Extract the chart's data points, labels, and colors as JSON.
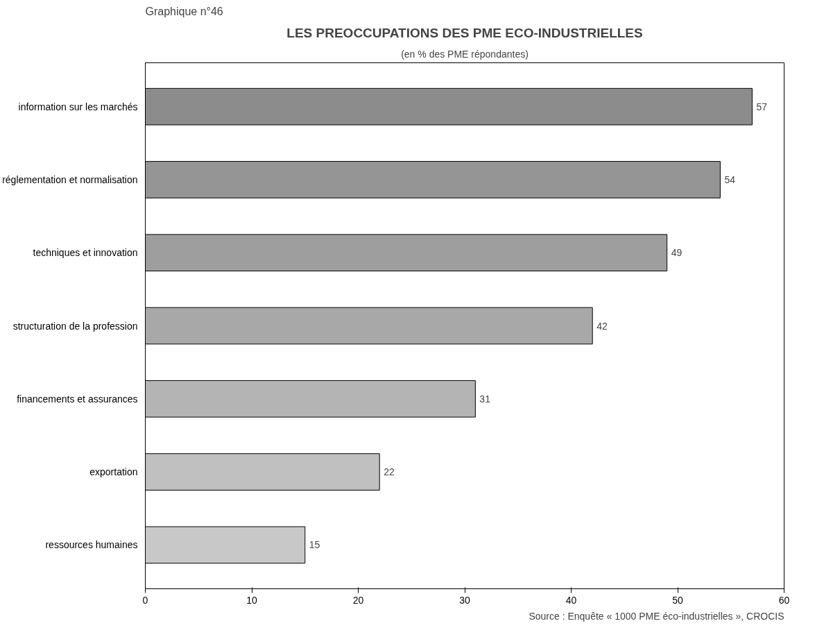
{
  "chart_data": {
    "type": "bar",
    "orientation": "horizontal",
    "title": "LES PREOCCUPATIONS DES PME ECO-INDUSTRIELLES",
    "subtitle": "(en % des PME répondantes)",
    "categories": [
      "information sur les marchés",
      "réglementation et normalisation",
      "techniques et innovation",
      "structuration de la profession",
      "financements et assurances",
      "exportation",
      "ressources humaines"
    ],
    "values": [
      57,
      54,
      49,
      42,
      31,
      22,
      15
    ],
    "colors": [
      "#8c8c8c",
      "#959595",
      "#9e9e9e",
      "#a8a8a8",
      "#b4b4b4",
      "#c0c0c0",
      "#c8c8c8"
    ],
    "xlim": [
      0,
      60
    ],
    "xticks": [
      0,
      10,
      20,
      30,
      40,
      50,
      60
    ],
    "grid": false,
    "data_labels": true,
    "annotations": [
      "Graphique n°46",
      "Source : Enquête « 1000 PME éco-industrielles », CROCIS"
    ]
  }
}
